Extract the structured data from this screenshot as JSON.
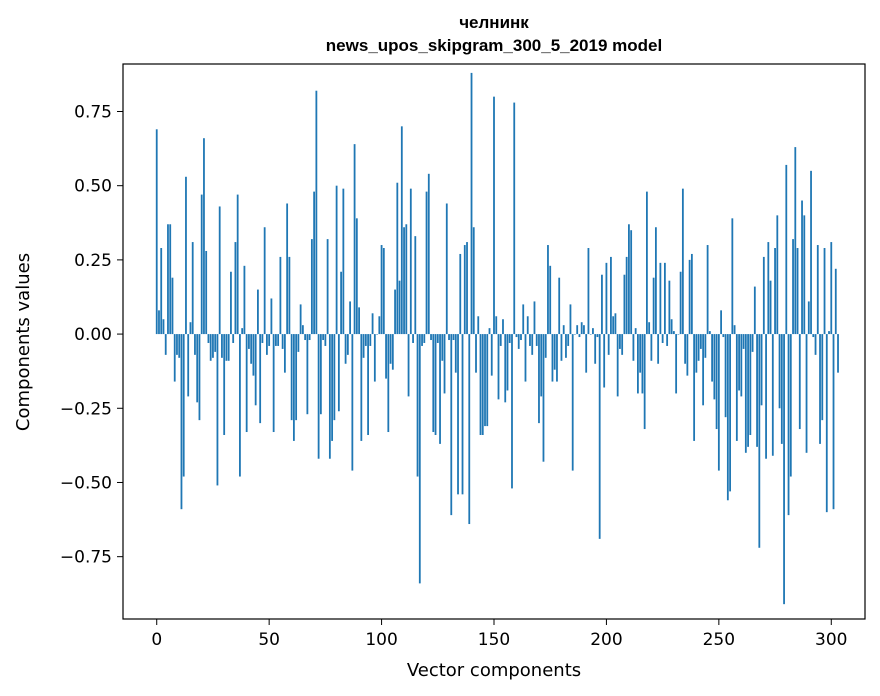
{
  "chart_data": {
    "type": "bar",
    "title": "челнинк",
    "subtitle": "news_upos_skipgram_300_5_2019 model",
    "xlabel": "Vector components",
    "ylabel": "Components values",
    "xlim": [
      -15,
      315
    ],
    "ylim": [
      -0.96,
      0.91
    ],
    "xticks": [
      0,
      50,
      100,
      150,
      200,
      250,
      300
    ],
    "yticks": [
      -0.75,
      -0.5,
      -0.25,
      0.0,
      0.25,
      0.5,
      0.75
    ],
    "ytick_labels": [
      "−0.75",
      "−0.50",
      "−0.25",
      "0.00",
      "0.25",
      "0.50",
      "0.75"
    ],
    "xtick_labels": [
      "0",
      "50",
      "100",
      "150",
      "200",
      "250",
      "300"
    ],
    "bar_color": "#1f77b4",
    "grid": false,
    "legend": "none",
    "x_start": 0,
    "values": [
      0.69,
      0.08,
      0.29,
      0.05,
      -0.07,
      0.37,
      0.37,
      0.19,
      -0.16,
      -0.07,
      -0.08,
      -0.59,
      -0.48,
      0.53,
      -0.21,
      0.04,
      0.31,
      -0.07,
      -0.23,
      -0.29,
      0.47,
      0.66,
      0.28,
      -0.03,
      -0.09,
      -0.08,
      -0.06,
      -0.51,
      0.43,
      -0.08,
      -0.34,
      -0.09,
      -0.09,
      0.21,
      -0.03,
      0.31,
      0.47,
      -0.48,
      0.02,
      0.23,
      -0.33,
      -0.05,
      -0.1,
      -0.14,
      -0.24,
      0.15,
      -0.3,
      -0.03,
      0.36,
      -0.07,
      -0.04,
      0.12,
      -0.33,
      -0.04,
      -0.04,
      0.26,
      -0.05,
      -0.13,
      0.44,
      0.26,
      -0.29,
      -0.36,
      -0.29,
      -0.06,
      0.1,
      0.03,
      -0.02,
      -0.27,
      -0.02,
      0.32,
      0.48,
      0.82,
      -0.42,
      -0.27,
      -0.02,
      -0.04,
      0.32,
      -0.42,
      -0.36,
      -0.29,
      0.5,
      -0.26,
      0.21,
      0.49,
      -0.1,
      -0.07,
      0.11,
      -0.46,
      0.64,
      0.39,
      0.09,
      -0.36,
      -0.08,
      -0.04,
      -0.34,
      -0.04,
      0.07,
      -0.16,
      0.0,
      0.06,
      0.3,
      0.29,
      -0.15,
      -0.33,
      -0.1,
      -0.12,
      0.15,
      0.51,
      0.18,
      0.7,
      0.36,
      0.37,
      -0.21,
      0.49,
      -0.03,
      0.33,
      -0.48,
      -0.84,
      -0.04,
      -0.03,
      0.48,
      0.54,
      -0.02,
      -0.33,
      -0.34,
      -0.03,
      -0.37,
      -0.09,
      -0.2,
      0.44,
      -0.02,
      -0.61,
      -0.02,
      -0.13,
      -0.54,
      0.27,
      -0.54,
      0.3,
      0.31,
      -0.64,
      0.88,
      0.36,
      -0.13,
      0.06,
      -0.34,
      -0.34,
      -0.31,
      -0.31,
      0.02,
      -0.14,
      0.8,
      0.06,
      -0.22,
      -0.04,
      0.05,
      -0.23,
      -0.19,
      -0.03,
      -0.52,
      0.78,
      -0.01,
      -0.05,
      -0.02,
      0.1,
      -0.16,
      0.06,
      -0.04,
      -0.07,
      0.11,
      -0.04,
      -0.3,
      -0.21,
      -0.43,
      -0.08,
      0.3,
      0.23,
      -0.16,
      -0.12,
      -0.16,
      0.19,
      -0.09,
      0.03,
      -0.08,
      -0.04,
      0.1,
      -0.46,
      0.0,
      0.03,
      -0.01,
      0.04,
      0.03,
      -0.13,
      0.29,
      0.0,
      0.02,
      -0.1,
      -0.01,
      -0.69,
      0.2,
      -0.18,
      0.24,
      -0.07,
      0.26,
      0.06,
      0.07,
      -0.21,
      -0.05,
      -0.07,
      0.2,
      0.26,
      0.37,
      0.35,
      -0.09,
      0.02,
      -0.2,
      -0.13,
      -0.2,
      -0.32,
      0.48,
      0.04,
      -0.09,
      0.19,
      0.36,
      -0.1,
      0.24,
      -0.03,
      0.24,
      -0.04,
      0.18,
      0.05,
      0.01,
      -0.2,
      0.0,
      0.21,
      0.49,
      -0.1,
      -0.14,
      0.25,
      0.27,
      -0.36,
      -0.13,
      -0.09,
      -0.05,
      -0.24,
      -0.08,
      0.3,
      0.01,
      -0.16,
      -0.22,
      -0.32,
      -0.46,
      0.08,
      -0.01,
      -0.28,
      -0.56,
      -0.53,
      0.39,
      0.03,
      -0.36,
      -0.19,
      -0.21,
      -0.05,
      -0.4,
      -0.38,
      -0.34,
      -0.06,
      0.16,
      -0.38,
      -0.72,
      -0.24,
      0.26,
      -0.42,
      0.31,
      0.18,
      -0.41,
      0.29,
      0.4,
      -0.25,
      -0.37,
      -0.91,
      0.57,
      -0.61,
      -0.48,
      0.32,
      0.63,
      0.29,
      -0.32,
      0.45,
      0.4,
      -0.4,
      0.11,
      0.55,
      -0.01,
      -0.07,
      0.3,
      -0.37,
      -0.29,
      0.29,
      -0.6,
      0.01,
      0.31,
      -0.59,
      0.22,
      -0.13
    ]
  }
}
